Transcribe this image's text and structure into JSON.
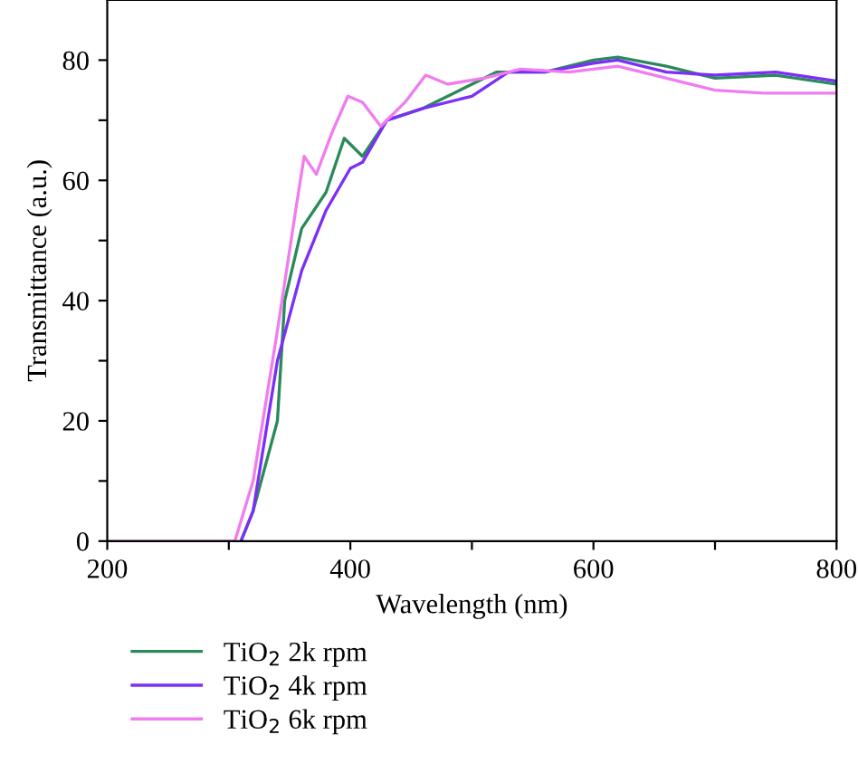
{
  "chart_data": {
    "type": "line",
    "xlabel": "Wavelength (nm)",
    "ylabel": "Transmittance (a.u.)",
    "xlim": [
      200,
      800
    ],
    "ylim": [
      0,
      90
    ],
    "xticks": [
      200,
      {
        "value": 300,
        "label": null
      },
      400,
      {
        "value": 500,
        "label": null
      },
      600,
      {
        "value": 700,
        "label": null
      },
      800
    ],
    "yticks": [
      0,
      {
        "value": 10,
        "label": null
      },
      20,
      {
        "value": 30,
        "label": null
      },
      40,
      {
        "value": 50,
        "label": null
      },
      60,
      {
        "value": 70,
        "label": null
      },
      80
    ],
    "grid": false,
    "legend": "bottom left",
    "line_style": "solid",
    "marker": "none",
    "series": [
      {
        "name": "TiO$_{2}$ 2k rpm",
        "color": "#2a8a5a",
        "x": [
          310,
          320,
          340,
          346,
          360,
          380,
          395,
          410,
          430,
          460,
          490,
          520,
          560,
          600,
          620,
          660,
          700,
          750,
          800
        ],
        "values": [
          0,
          5,
          20,
          40,
          52,
          58,
          67,
          64,
          70,
          72,
          75,
          78,
          78,
          80,
          80.5,
          79,
          77,
          77.5,
          76
        ]
      },
      {
        "name": "TiO$_{2}$ 4k rpm",
        "color": "#7b2ff7",
        "x": [
          310,
          320,
          340,
          360,
          380,
          400,
          410,
          430,
          460,
          500,
          530,
          560,
          600,
          620,
          660,
          700,
          750,
          800
        ],
        "values": [
          0,
          5,
          30,
          45,
          55,
          62,
          63,
          70,
          72,
          74,
          78,
          78,
          79.5,
          80,
          78,
          77.5,
          78,
          76.5
        ]
      },
      {
        "name": "TiO$_{2}$ 6k rpm",
        "color": "#f07cf0",
        "x": [
          200,
          300,
          305,
          320,
          340,
          355,
          362,
          372,
          385,
          398,
          410,
          425,
          445,
          462,
          480,
          510,
          540,
          580,
          620,
          660,
          700,
          740,
          800
        ],
        "values": [
          0,
          0,
          0,
          10,
          35,
          55,
          64,
          61,
          68,
          74,
          73,
          69,
          73,
          77.5,
          76,
          77,
          78.5,
          78,
          79,
          77,
          75,
          74.5,
          74.5
        ]
      }
    ]
  }
}
